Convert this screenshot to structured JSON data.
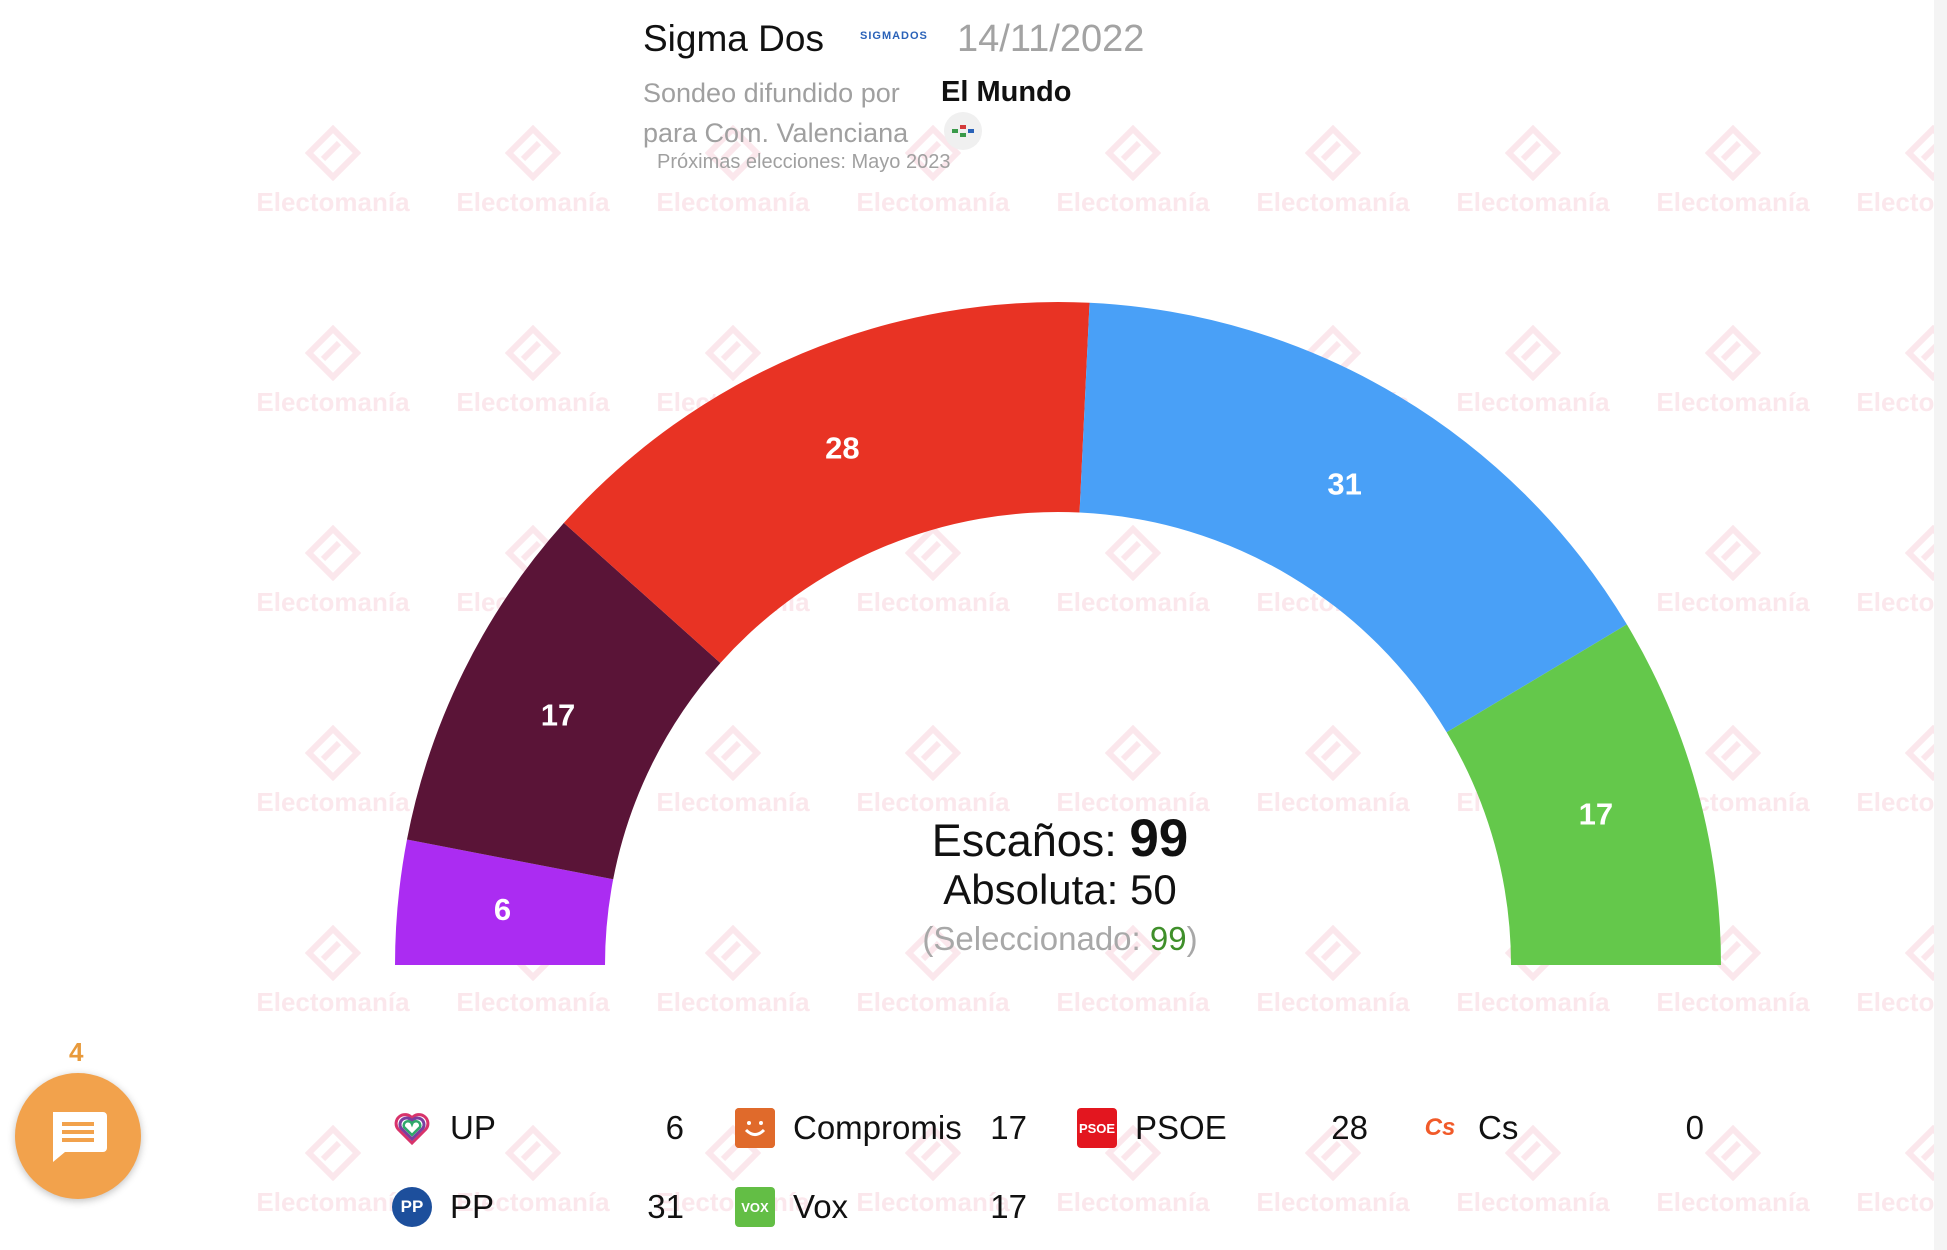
{
  "header": {
    "pollster": "Sigma Dos",
    "pollster_logo_text": "SIGMADOS",
    "date": "14/11/2022",
    "published_by_label": "Sondeo difundido por",
    "media": "El Mundo",
    "region_label": "para Com. Valenciana",
    "next_elections": "Próximas elecciones: Mayo 2023"
  },
  "watermark": {
    "text": "Electomanía"
  },
  "chart_data": {
    "type": "hemicycle",
    "total_seats": 99,
    "majority": 50,
    "selected": 99,
    "segments": [
      {
        "party": "UP",
        "seats": 6,
        "color": "#ab2cf2"
      },
      {
        "party": "Compromis",
        "seats": 17,
        "color": "#5a1437"
      },
      {
        "party": "PSOE",
        "seats": 28,
        "color": "#e83324"
      },
      {
        "party": "PP",
        "seats": 31,
        "color": "#49a0f7"
      },
      {
        "party": "Vox",
        "seats": 17,
        "color": "#64c84b"
      }
    ],
    "center": {
      "seats_label": "Escaños:",
      "seats_value": "99",
      "absolute_label": "Absoluta:",
      "absolute_value": "50",
      "selected_open": "(Seleccionado:",
      "selected_value": "99",
      "selected_close": ")"
    }
  },
  "legend": [
    {
      "party": "UP",
      "seats": "6",
      "icon": "heart-icon",
      "color": "#7b3fa0"
    },
    {
      "party": "Compromis",
      "seats": "17",
      "icon": "compromis-smile-icon",
      "color": "#e06a2b"
    },
    {
      "party": "PSOE",
      "seats": "28",
      "icon": "psoe-logo-icon",
      "color": "#e3161f",
      "icon_text": "PSOE"
    },
    {
      "party": "Cs",
      "seats": "0",
      "icon": "cs-logo-icon",
      "color": "#f15a29",
      "icon_text": "Cs"
    },
    {
      "party": "PP",
      "seats": "31",
      "icon": "pp-logo-icon",
      "color": "#1d4f9c",
      "icon_text": "PP"
    },
    {
      "party": "Vox",
      "seats": "17",
      "icon": "vox-logo-icon",
      "color": "#63be45",
      "icon_text": "VOX"
    }
  ],
  "chat": {
    "badge": "4",
    "icon": "chat-bubble-icon"
  }
}
